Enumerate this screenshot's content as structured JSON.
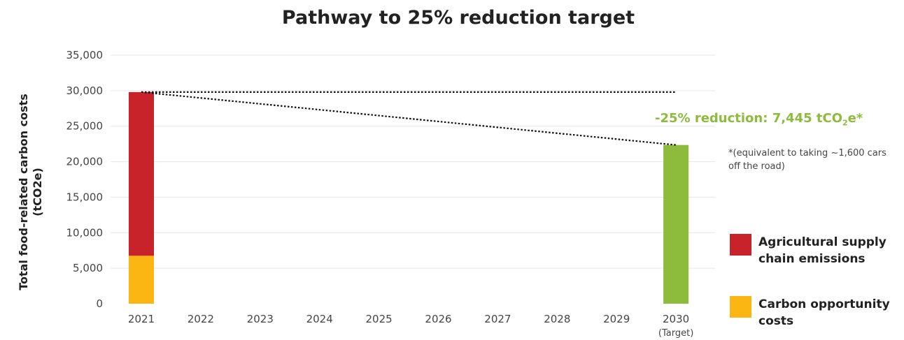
{
  "chart_data": {
    "type": "bar",
    "title": "Pathway to 25% reduction target",
    "ylabel": [
      "Total food-related carbon costs",
      "(tCO2e)"
    ],
    "xlabel": "",
    "ylim": [
      0,
      35000
    ],
    "yticks": [
      "0",
      "5,000",
      "10,000",
      "15,000",
      "20,000",
      "25,000",
      "30,000",
      "35,000"
    ],
    "ytick_values": [
      0,
      5000,
      10000,
      15000,
      20000,
      25000,
      30000,
      35000
    ],
    "categories": [
      "2021",
      "2022",
      "2023",
      "2024",
      "2025",
      "2026",
      "2027",
      "2028",
      "2029",
      "2030"
    ],
    "category_sublabels": {
      "2030": "(Target)"
    },
    "stacked": true,
    "series": [
      {
        "name": "Carbon opportunity costs",
        "color": "#fbb614",
        "values": [
          6750,
          null,
          null,
          null,
          null,
          null,
          null,
          null,
          null,
          null
        ]
      },
      {
        "name": "Agricultural supply chain emissions",
        "color": "#c8232a",
        "values": [
          23050,
          null,
          null,
          null,
          null,
          null,
          null,
          null,
          null,
          null
        ]
      },
      {
        "name": "",
        "color": "#8dbb3c",
        "values": [
          null,
          null,
          null,
          null,
          null,
          null,
          null,
          null,
          null,
          22350
        ]
      }
    ],
    "reference_lines": [
      {
        "style": "dotted",
        "from": [
          "2021",
          29800
        ],
        "to": [
          "2030",
          29800
        ]
      },
      {
        "style": "dotted",
        "from": [
          "2021",
          29800
        ],
        "to": [
          "2030",
          22350
        ]
      }
    ],
    "grid": "horizontal",
    "legend_position": "right",
    "annotation": {
      "prefix": "-25% reduction: 7,445 tCO",
      "sub": "2",
      "suffix": "e*"
    },
    "note": "*(equivalent to taking ~1,600 cars off the road)"
  },
  "legend": [
    {
      "label": "Agricultural supply chain emissions",
      "color": "#c8232a"
    },
    {
      "label": "Carbon opportunity costs",
      "color": "#fbb614"
    }
  ]
}
